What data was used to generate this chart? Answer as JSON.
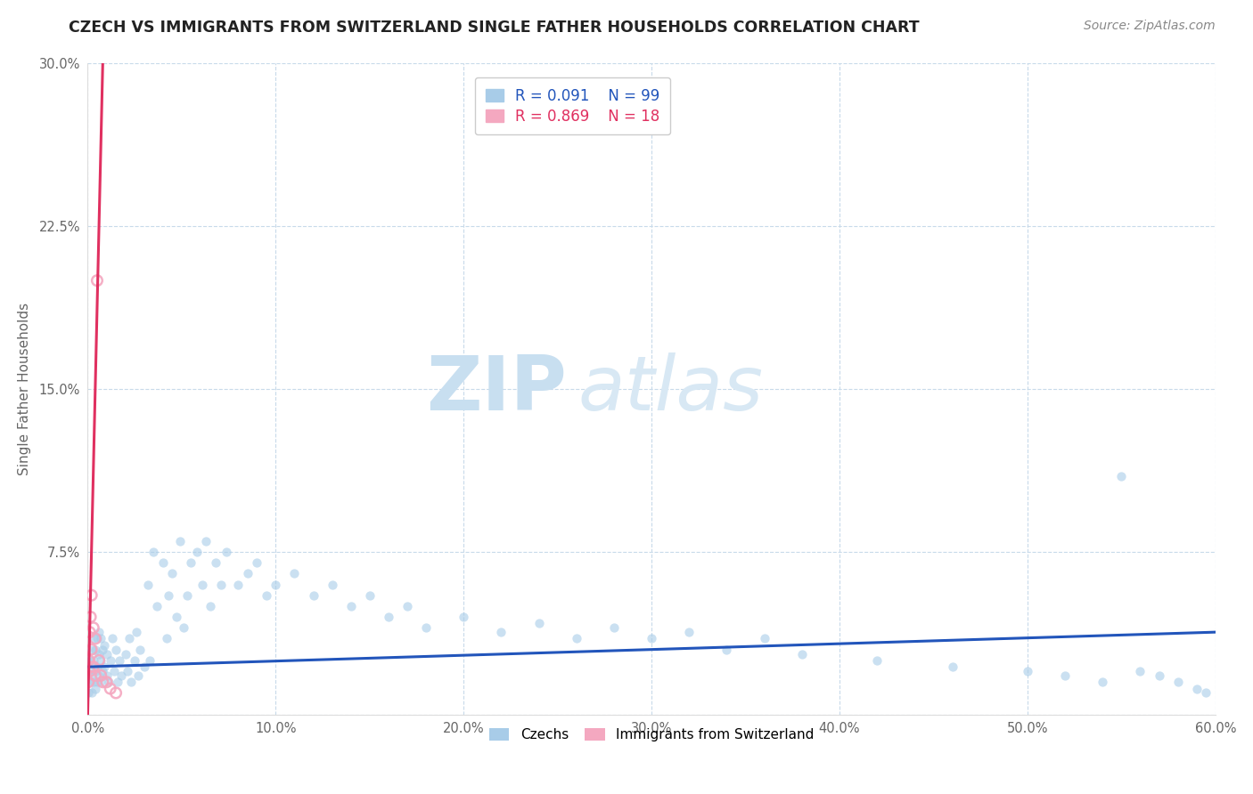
{
  "title": "CZECH VS IMMIGRANTS FROM SWITZERLAND SINGLE FATHER HOUSEHOLDS CORRELATION CHART",
  "source": "Source: ZipAtlas.com",
  "ylabel": "Single Father Households",
  "xlim": [
    0.0,
    0.6
  ],
  "ylim": [
    0.0,
    0.3
  ],
  "xticks": [
    0.0,
    0.1,
    0.2,
    0.3,
    0.4,
    0.5,
    0.6
  ],
  "xticklabels": [
    "0.0%",
    "10.0%",
    "20.0%",
    "30.0%",
    "40.0%",
    "50.0%",
    "60.0%"
  ],
  "yticks": [
    0.0,
    0.075,
    0.15,
    0.225,
    0.3
  ],
  "yticklabels": [
    "",
    "7.5%",
    "15.0%",
    "22.5%",
    "30.0%"
  ],
  "czech_R": 0.091,
  "czech_N": 99,
  "swiss_R": 0.869,
  "swiss_N": 18,
  "czech_color": "#a8cce8",
  "swiss_color": "#f4a8c0",
  "czech_line_color": "#2255bb",
  "swiss_line_color": "#e03060",
  "watermark_zip": "ZIP",
  "watermark_atlas": "atlas",
  "background_color": "#ffffff",
  "grid_color": "#c8daea",
  "legend_edge_color": "#cccccc",
  "axis_label_color": "#666666",
  "title_color": "#222222",
  "source_color": "#888888",
  "czech_x": [
    0.0005,
    0.001,
    0.001,
    0.0015,
    0.002,
    0.002,
    0.002,
    0.003,
    0.003,
    0.003,
    0.004,
    0.004,
    0.004,
    0.005,
    0.005,
    0.005,
    0.006,
    0.006,
    0.006,
    0.007,
    0.007,
    0.007,
    0.008,
    0.008,
    0.009,
    0.009,
    0.01,
    0.01,
    0.011,
    0.012,
    0.013,
    0.014,
    0.015,
    0.016,
    0.017,
    0.018,
    0.02,
    0.021,
    0.022,
    0.023,
    0.025,
    0.026,
    0.027,
    0.028,
    0.03,
    0.032,
    0.033,
    0.035,
    0.037,
    0.04,
    0.042,
    0.043,
    0.045,
    0.047,
    0.049,
    0.051,
    0.053,
    0.055,
    0.058,
    0.061,
    0.063,
    0.065,
    0.068,
    0.071,
    0.074,
    0.08,
    0.085,
    0.09,
    0.095,
    0.1,
    0.11,
    0.12,
    0.13,
    0.14,
    0.15,
    0.16,
    0.17,
    0.18,
    0.2,
    0.22,
    0.24,
    0.26,
    0.28,
    0.3,
    0.32,
    0.34,
    0.36,
    0.38,
    0.42,
    0.46,
    0.5,
    0.52,
    0.54,
    0.55,
    0.56,
    0.57,
    0.58,
    0.59,
    0.595
  ],
  "czech_y": [
    0.01,
    0.015,
    0.025,
    0.02,
    0.018,
    0.03,
    0.01,
    0.025,
    0.015,
    0.035,
    0.02,
    0.03,
    0.012,
    0.022,
    0.035,
    0.015,
    0.018,
    0.028,
    0.038,
    0.025,
    0.015,
    0.035,
    0.02,
    0.03,
    0.022,
    0.032,
    0.018,
    0.028,
    0.015,
    0.025,
    0.035,
    0.02,
    0.03,
    0.015,
    0.025,
    0.018,
    0.028,
    0.02,
    0.035,
    0.015,
    0.025,
    0.038,
    0.018,
    0.03,
    0.022,
    0.06,
    0.025,
    0.075,
    0.05,
    0.07,
    0.035,
    0.055,
    0.065,
    0.045,
    0.08,
    0.04,
    0.055,
    0.07,
    0.075,
    0.06,
    0.08,
    0.05,
    0.07,
    0.06,
    0.075,
    0.06,
    0.065,
    0.07,
    0.055,
    0.06,
    0.065,
    0.055,
    0.06,
    0.05,
    0.055,
    0.045,
    0.05,
    0.04,
    0.045,
    0.038,
    0.042,
    0.035,
    0.04,
    0.035,
    0.038,
    0.03,
    0.035,
    0.028,
    0.025,
    0.022,
    0.02,
    0.018,
    0.015,
    0.11,
    0.02,
    0.018,
    0.015,
    0.012,
    0.01
  ],
  "swiss_x": [
    0.0003,
    0.0005,
    0.001,
    0.001,
    0.0015,
    0.002,
    0.002,
    0.003,
    0.003,
    0.004,
    0.004,
    0.005,
    0.006,
    0.007,
    0.008,
    0.01,
    0.012,
    0.015
  ],
  "swiss_y": [
    0.015,
    0.025,
    0.02,
    0.038,
    0.045,
    0.03,
    0.055,
    0.022,
    0.04,
    0.018,
    0.035,
    0.2,
    0.025,
    0.018,
    0.015,
    0.015,
    0.012,
    0.01
  ]
}
